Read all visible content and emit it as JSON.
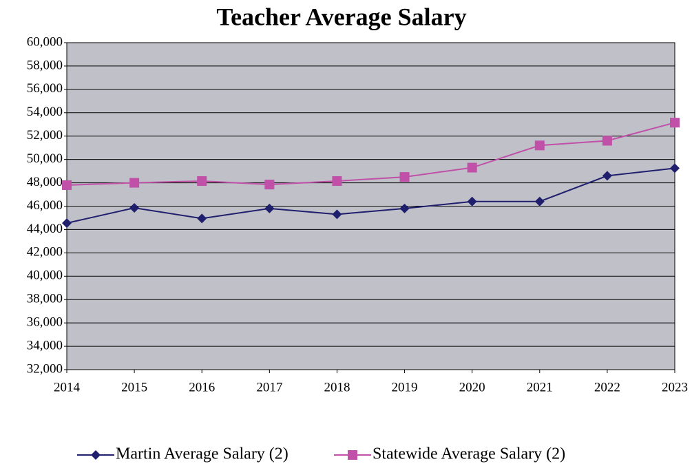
{
  "chart_data": {
    "type": "line",
    "title": "Teacher Average Salary",
    "x": [
      2014,
      2015,
      2016,
      2017,
      2018,
      2019,
      2020,
      2021,
      2022,
      2023
    ],
    "xlim": [
      2014,
      2023
    ],
    "xticks": [
      2014,
      2015,
      2016,
      2017,
      2018,
      2019,
      2020,
      2021,
      2022,
      2023
    ],
    "ylim": [
      32000,
      60000
    ],
    "yticks": [
      {
        "value": 32000,
        "label": "32,000"
      },
      {
        "value": 34000,
        "label": "34,000"
      },
      {
        "value": 36000,
        "label": "36,000"
      },
      {
        "value": 38000,
        "label": "38,000"
      },
      {
        "value": 40000,
        "label": "40,000"
      },
      {
        "value": 42000,
        "label": "42,000"
      },
      {
        "value": 44000,
        "label": "44,000"
      },
      {
        "value": 46000,
        "label": "46,000"
      },
      {
        "value": 48000,
        "label": "48,000"
      },
      {
        "value": 50000,
        "label": "50,000"
      },
      {
        "value": 52000,
        "label": "52,000"
      },
      {
        "value": 54000,
        "label": "54,000"
      },
      {
        "value": 56000,
        "label": "56,000"
      },
      {
        "value": 58000,
        "label": "58,000"
      },
      {
        "value": 60000,
        "label": "60,000"
      }
    ],
    "grid": true,
    "legend": "bottom",
    "series": [
      {
        "name": "Martin Average Salary (2)",
        "color": "#1f1f6e",
        "marker": "diamond",
        "values": [
          44550,
          45850,
          44950,
          45800,
          45300,
          45800,
          46400,
          46400,
          48600,
          49250
        ]
      },
      {
        "name": "Statewide Average Salary (2)",
        "color": "#c050a8",
        "marker": "square",
        "values": [
          47800,
          48000,
          48150,
          47850,
          48150,
          48500,
          49300,
          51200,
          51600,
          53150
        ]
      }
    ]
  }
}
